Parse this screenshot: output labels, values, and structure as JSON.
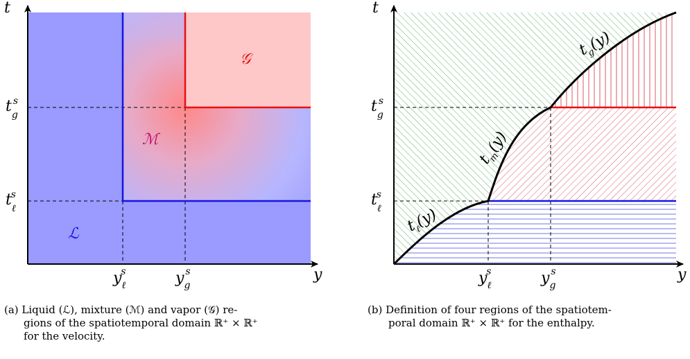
{
  "panel_a": {
    "axis_x": "y",
    "axis_y": "t",
    "x_ticks": [
      {
        "base": "y",
        "sub": "ℓ",
        "sup": "s"
      },
      {
        "base": "y",
        "sub": "g",
        "sup": "s"
      }
    ],
    "y_ticks": [
      {
        "base": "t",
        "sub": "g",
        "sup": "s"
      },
      {
        "base": "t",
        "sub": "ℓ",
        "sup": "s"
      }
    ],
    "regions": [
      {
        "label": "ℒ",
        "color": "#1010e8"
      },
      {
        "label": "ℳ",
        "color": "#c0106a"
      },
      {
        "label": "𝒢",
        "color": "#e01010"
      }
    ],
    "caption_lines": [
      "(a) Liquid (ℒ), mixture (ℳ) and vapor (𝒢) re-",
      "gions of the spatiotemporal domain ℝ⁺ × ℝ⁺",
      "for the velocity."
    ]
  },
  "panel_b": {
    "axis_x": "y",
    "axis_y": "t",
    "x_ticks": [
      {
        "base": "y",
        "sub": "ℓ",
        "sup": "s"
      },
      {
        "base": "y",
        "sub": "g",
        "sup": "s"
      }
    ],
    "y_ticks": [
      {
        "base": "t",
        "sub": "g",
        "sup": "s"
      },
      {
        "base": "t",
        "sub": "ℓ",
        "sup": "s"
      }
    ],
    "curves": [
      {
        "label": "t",
        "sub": "ℓ",
        "arg": "(y)"
      },
      {
        "label": "t",
        "sub": "m",
        "arg": "(y)"
      },
      {
        "label": "t",
        "sub": "g",
        "arg": "(y)"
      }
    ],
    "caption_lines": [
      "(b) Definition of four regions of the spatiotem-",
      "poral domain ℝ⁺ × ℝ⁺ for the enthalpy."
    ]
  },
  "colors": {
    "liquid": "#9a9aff",
    "vapor": "#ffc8c8",
    "blue_line": "#1515e0",
    "red_line": "#e81010",
    "green_hatch": "#3a9a4a",
    "red_hatch": "#d03040",
    "blue_hatch": "#5050e0"
  }
}
